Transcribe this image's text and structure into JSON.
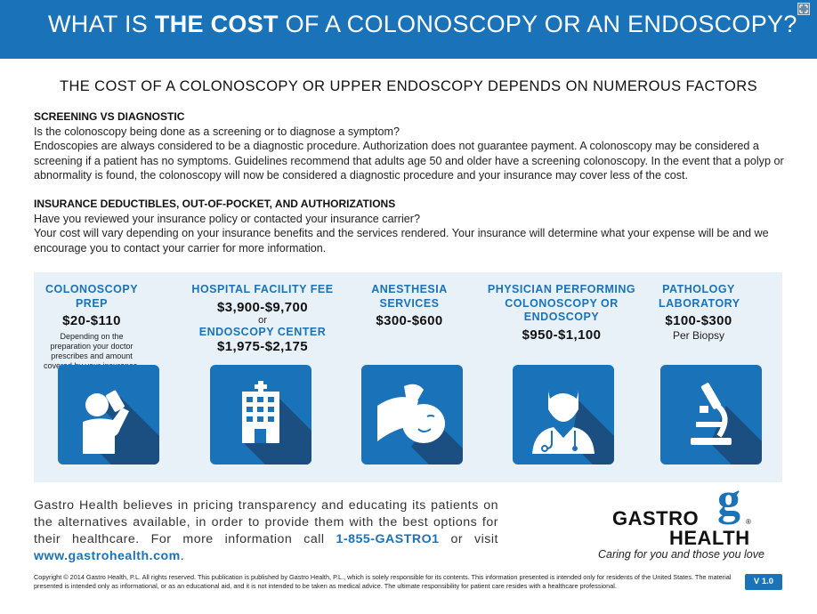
{
  "header": {
    "title_part1": "WHAT IS ",
    "title_bold": "THE COST",
    "title_part2": " OF A COLONOSCOPY OR AN ENDOSCOPY?"
  },
  "subhead": "THE COST OF A COLONOSCOPY OR UPPER ENDOSCOPY DEPENDS ON NUMEROUS FACTORS",
  "screening": {
    "heading": "SCREENING VS DIAGNOSTIC",
    "question": "Is the colonoscopy being done as a screening or to diagnose a symptom?",
    "body": "Endoscopies are always considered to be a diagnostic procedure. Authorization does not guarantee payment. A colonoscopy may be considered a screening if a patient has no symptoms. Guidelines recommend that adults age 50 and older have a screening colonoscopy. In the event that a polyp or abnormality is found, the colonoscopy will now be considered a diagnostic procedure and your insurance may cover less of the cost."
  },
  "insurance": {
    "heading": "INSURANCE DEDUCTIBLES, OUT-OF-POCKET, AND AUTHORIZATIONS",
    "question": "Have you reviewed your insurance policy or contacted your insurance carrier?",
    "body": "Your cost will vary depending on your insurance benefits and the services rendered. Your insurance will determine what your expense will be and we encourage you to contact your carrier for more information."
  },
  "costs": {
    "prep": {
      "label": "COLONOSCOPY PREP",
      "price": "$20-$110",
      "note": "Depending on the preparation your doctor prescribes and amount covered by your insurance.",
      "icon": "person-drinking-icon"
    },
    "facility": {
      "label": "HOSPITAL FACILITY FEE",
      "price": "$3,900-$9,700",
      "or": "or",
      "label2": "ENDOSCOPY CENTER",
      "price2": "$1,975-$2,175",
      "icon": "hospital-building-icon"
    },
    "anesthesia": {
      "label": "ANESTHESIA SERVICES",
      "price": "$300-$600",
      "icon": "sleeping-patient-icon"
    },
    "physician": {
      "label": "PHYSICIAN PERFORMING COLONOSCOPY OR ENDOSCOPY",
      "price": "$950-$1,100",
      "icon": "doctor-icon"
    },
    "pathology": {
      "label": "PATHOLOGY LABORATORY",
      "price": "$100-$300",
      "sub": "Per Biopsy",
      "icon": "microscope-icon"
    }
  },
  "footer": {
    "text": "Gastro Health believes in pricing transparency and educating its patients on the alternatives available, in order to provide them with the best options for their healthcare. For more information call ",
    "phone": "1-855-GASTRO1",
    "or_visit": " or visit ",
    "website": "www.gastrohealth.com",
    "period": "."
  },
  "logo": {
    "word1": "GASTRO",
    "word2": "HEALTH",
    "mark": "g",
    "registered": "®",
    "tagline": "Caring for you and those you love"
  },
  "copyright": "Copyright © 2014 Gastro Health, P.L. All rights reserved. This publication is published by Gastro Health, P.L., which is solely responsible for its contents. This information presented is intended only for residents of the United States. The material presented is intended only as informational, or as an educational aid, and it is not intended to be taken as medical advice. The ultimate responsibility for patient care resides with a healthcare professional.",
  "version": "V 1.0",
  "colors": {
    "brand_blue": "#1a72b9",
    "shadow_blue": "#1b4f82",
    "panel_bg": "#e8f1f8"
  }
}
